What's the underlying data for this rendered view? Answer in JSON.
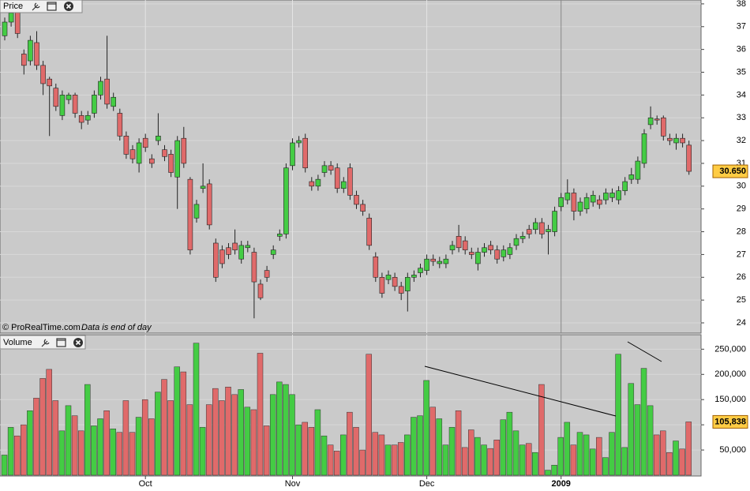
{
  "chart_data": [
    {
      "type": "candlestick",
      "title": "Price",
      "source": "© ProRealTime.com",
      "note": "Data is end of day",
      "up_color": "#44cc44",
      "down_color": "#e06a6a",
      "grid": true,
      "ylim": [
        23.55,
        38.17
      ],
      "yticks": [
        24,
        25,
        26,
        27,
        28,
        29,
        30,
        31,
        32,
        33,
        34,
        35,
        36,
        37,
        38
      ],
      "last": {
        "value": 30.65,
        "label": "30.650"
      },
      "open": [
        36.6,
        37.2,
        37.8,
        35.8,
        35.5,
        36.3,
        35.3,
        34.7,
        34.3,
        33.1,
        33.8,
        34.0,
        33.1,
        32.9,
        33.2,
        34.0,
        34.7,
        33.5,
        33.2,
        32.2,
        31.6,
        31.0,
        32.1,
        31.2,
        32.0,
        31.6,
        31.4,
        30.4,
        32.1,
        30.3,
        28.6,
        29.9,
        30.1,
        27.5,
        27.2,
        27.3,
        27.5,
        26.8,
        27.3,
        27.1,
        25.7,
        26.3,
        27.0,
        27.8,
        27.9,
        30.9,
        31.9,
        32.1,
        30.2,
        30.0,
        30.6,
        30.9,
        30.8,
        29.9,
        30.8,
        29.6,
        29.2,
        28.6,
        26.9,
        26.0,
        25.9,
        26.0,
        25.6,
        25.4,
        26.0,
        26.2,
        26.3,
        26.8,
        26.6,
        26.6,
        27.2,
        27.8,
        27.6,
        27.1,
        26.6,
        27.1,
        27.4,
        27.2,
        26.9,
        27.0,
        27.4,
        27.7,
        28.1,
        28.1,
        28.4,
        28.0,
        28.0,
        29.1,
        29.4,
        29.7,
        28.9,
        29.0,
        29.3,
        29.4,
        29.4,
        29.5,
        29.4,
        29.8,
        30.3,
        30.3,
        31.0,
        32.7,
        32.95,
        33.0,
        32.1,
        31.9,
        32.1,
        31.8
      ],
      "high": [
        37.4,
        37.8,
        38.0,
        36.0,
        36.6,
        36.8,
        35.5,
        34.8,
        34.5,
        34.2,
        34.1,
        34.1,
        33.3,
        33.3,
        34.2,
        34.8,
        36.6,
        34.1,
        33.4,
        32.4,
        31.8,
        32.1,
        32.3,
        31.4,
        33.2,
        31.8,
        31.6,
        32.2,
        32.6,
        30.4,
        29.4,
        31.0,
        30.3,
        27.7,
        27.4,
        27.5,
        28.1,
        27.6,
        27.6,
        27.3,
        25.9,
        26.5,
        27.4,
        28.1,
        31.0,
        32.1,
        32.2,
        32.3,
        30.4,
        30.5,
        31.1,
        31.1,
        31.0,
        30.4,
        31.0,
        29.8,
        29.4,
        28.8,
        27.1,
        26.2,
        26.3,
        26.2,
        25.8,
        26.2,
        26.3,
        26.6,
        27.0,
        27.0,
        26.9,
        27.0,
        27.6,
        28.3,
        27.8,
        27.3,
        27.3,
        27.5,
        27.6,
        27.4,
        27.4,
        27.5,
        27.9,
        28.0,
        28.3,
        28.6,
        28.6,
        28.3,
        29.1,
        29.7,
        30.3,
        29.9,
        29.5,
        29.7,
        29.8,
        29.6,
        29.9,
        29.9,
        30.0,
        30.4,
        30.8,
        31.3,
        32.5,
        33.5,
        33.1,
        33.1,
        32.3,
        32.3,
        32.3,
        32.0
      ],
      "low": [
        36.4,
        37.0,
        36.5,
        34.9,
        35.3,
        35.1,
        34.0,
        32.2,
        33.3,
        32.9,
        33.6,
        33.0,
        32.5,
        32.7,
        33.0,
        33.8,
        33.4,
        33.3,
        32.0,
        31.2,
        31.0,
        30.6,
        31.5,
        30.8,
        31.8,
        31.1,
        30.4,
        29.0,
        30.8,
        27.0,
        28.4,
        29.7,
        28.1,
        25.8,
        26.4,
        26.8,
        27.0,
        26.6,
        27.1,
        24.2,
        25.0,
        25.8,
        26.8,
        27.6,
        27.7,
        30.7,
        31.7,
        30.6,
        29.8,
        29.8,
        30.4,
        30.5,
        29.7,
        29.7,
        29.4,
        29.0,
        28.7,
        27.2,
        25.8,
        25.1,
        25.7,
        25.4,
        25.0,
        24.5,
        25.8,
        26.0,
        26.1,
        26.5,
        26.4,
        26.4,
        27.0,
        27.1,
        27.0,
        26.8,
        26.3,
        26.9,
        27.0,
        26.6,
        26.7,
        26.8,
        27.2,
        27.5,
        27.7,
        27.9,
        27.7,
        27.0,
        27.8,
        28.9,
        29.2,
        28.5,
        28.7,
        28.8,
        29.1,
        29.0,
        29.2,
        29.3,
        29.2,
        29.6,
        30.1,
        30.1,
        30.8,
        32.5,
        32.7,
        32.0,
        31.8,
        31.6,
        31.7,
        30.5
      ],
      "close": [
        37.2,
        37.6,
        36.7,
        35.3,
        36.4,
        35.3,
        34.5,
        34.4,
        33.5,
        34.0,
        34.0,
        33.2,
        32.8,
        33.1,
        34.0,
        34.6,
        33.6,
        33.9,
        32.2,
        31.4,
        31.2,
        31.9,
        31.7,
        31.0,
        32.2,
        31.3,
        30.6,
        32.0,
        31.0,
        27.2,
        29.2,
        30.0,
        28.3,
        26.0,
        26.6,
        27.0,
        27.2,
        27.4,
        27.4,
        25.8,
        25.1,
        26.0,
        27.2,
        27.9,
        30.8,
        31.9,
        32.0,
        30.8,
        30.0,
        30.3,
        30.9,
        30.7,
        29.9,
        30.2,
        29.6,
        29.2,
        28.9,
        27.4,
        26.0,
        25.3,
        26.1,
        25.6,
        25.3,
        26.0,
        26.1,
        26.4,
        26.8,
        26.7,
        26.7,
        26.8,
        27.4,
        27.3,
        27.2,
        27.0,
        27.1,
        27.3,
        27.2,
        26.8,
        27.2,
        27.3,
        27.7,
        27.8,
        27.9,
        28.4,
        27.9,
        28.1,
        28.9,
        29.5,
        29.7,
        28.9,
        29.3,
        29.5,
        29.6,
        29.2,
        29.7,
        29.7,
        29.8,
        30.2,
        30.5,
        31.1,
        32.3,
        33.0,
        32.9,
        32.2,
        32.0,
        32.1,
        31.9,
        30.65
      ]
    },
    {
      "type": "bar",
      "title": "Volume",
      "grid": true,
      "ylim": [
        0,
        278740
      ],
      "yticks": [
        {
          "value": 50000,
          "label": "50,000"
        },
        {
          "value": 100000,
          "label": "100,000"
        },
        {
          "value": 150000,
          "label": "150,000"
        },
        {
          "value": 200000,
          "label": "200,000"
        },
        {
          "value": 250000,
          "label": "250,000"
        }
      ],
      "last": {
        "value": 105838,
        "label": "105,838"
      },
      "categories": [
        null,
        null,
        null,
        null,
        null,
        null,
        null,
        null,
        null,
        null,
        null,
        null,
        null,
        null,
        null,
        null,
        null,
        null,
        null,
        null,
        null,
        null,
        "Oct",
        null,
        null,
        null,
        null,
        null,
        null,
        null,
        null,
        null,
        null,
        null,
        null,
        null,
        null,
        null,
        null,
        null,
        null,
        null,
        null,
        null,
        null,
        "Nov",
        null,
        null,
        null,
        null,
        null,
        null,
        null,
        null,
        null,
        null,
        null,
        null,
        null,
        null,
        null,
        null,
        null,
        null,
        null,
        null,
        "Dec",
        null,
        null,
        null,
        null,
        null,
        null,
        null,
        null,
        null,
        null,
        null,
        null,
        null,
        null,
        null,
        null,
        null,
        null,
        null,
        null,
        "2009",
        null,
        null,
        null,
        null,
        null,
        null,
        null,
        null,
        null,
        null,
        null,
        null,
        null,
        null,
        null,
        null,
        null,
        null,
        null,
        null
      ],
      "values": [
        40000,
        95000,
        78000,
        100000,
        128000,
        153000,
        192000,
        210000,
        148000,
        88000,
        138000,
        118000,
        88000,
        180000,
        98000,
        112000,
        128000,
        92000,
        85000,
        148000,
        85000,
        115000,
        150000,
        112000,
        165000,
        190000,
        148000,
        215000,
        205000,
        140000,
        262000,
        95000,
        140000,
        172000,
        148000,
        175000,
        160000,
        170000,
        135000,
        130000,
        242000,
        98000,
        160000,
        185000,
        180000,
        160000,
        100000,
        105000,
        95000,
        130000,
        78000,
        60000,
        48000,
        80000,
        125000,
        95000,
        50000,
        240000,
        85000,
        80000,
        60000,
        60000,
        65000,
        80000,
        115000,
        118000,
        188000,
        135000,
        112000,
        60000,
        95000,
        128000,
        55000,
        90000,
        75000,
        60000,
        53000,
        70000,
        110000,
        125000,
        88000,
        60000,
        63000,
        45000,
        180000,
        10000,
        20000,
        75000,
        105000,
        60000,
        85000,
        80000,
        52000,
        75000,
        35000,
        85000,
        240000,
        55000,
        182000,
        140000,
        212000,
        138000,
        80000,
        88000,
        45000,
        68000,
        52000,
        105838
      ]
    }
  ]
}
